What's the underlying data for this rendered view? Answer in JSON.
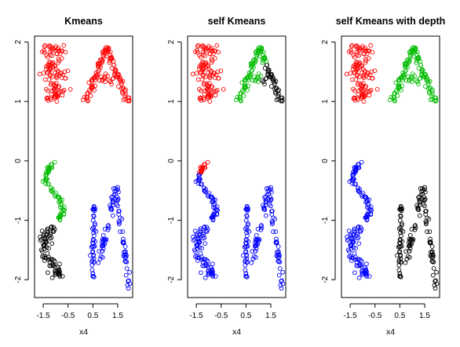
{
  "chart_data": [
    {
      "type": "scatter",
      "title": "Kmeans",
      "xlabel": "x4",
      "ylabel": "",
      "xlim": [
        -1.85,
        2.1
      ],
      "ylim": [
        -2.3,
        2.1
      ],
      "xticks": [
        -1.5,
        -0.5,
        0.5,
        1.5
      ],
      "xtick_labels": [
        "-1.5",
        "-0.5",
        "0.5",
        "1.5"
      ],
      "yticks": [
        -2,
        -1,
        0,
        1,
        2
      ],
      "ytick_labels": [
        "-2",
        "-1",
        "0",
        "1",
        "2"
      ],
      "grid": false,
      "legend": "none",
      "cluster_colors": {
        "upper-left": "#ff0000",
        "upper-right": "#ff0000",
        "middle-left": "#00bb00",
        "lower-left": "#000000",
        "lower-right": "#0000ff"
      }
    },
    {
      "type": "scatter",
      "title": "self Kmeans",
      "xlabel": "x4",
      "ylabel": "",
      "xlim": [
        -1.85,
        2.1
      ],
      "ylim": [
        -2.3,
        2.1
      ],
      "xticks": [
        -1.5,
        -0.5,
        0.5,
        1.5
      ],
      "xtick_labels": [
        "-1.5",
        "-0.5",
        "0.5",
        "1.5"
      ],
      "yticks": [
        -2,
        -1,
        0,
        1,
        2
      ],
      "ytick_labels": [
        "-2",
        "-1",
        "0",
        "1",
        "2"
      ],
      "grid": false,
      "legend": "none",
      "cluster_colors": {
        "upper-left": "#ff0000",
        "upper-right": "#00bb00",
        "upper-right-lower": "#000000",
        "middle-left-top": "#ff0000",
        "lower-all": "#0000ff"
      }
    },
    {
      "type": "scatter",
      "title": "self Kmeans with depth",
      "xlabel": "x4",
      "ylabel": "",
      "xlim": [
        -1.85,
        2.1
      ],
      "ylim": [
        -2.3,
        2.1
      ],
      "xticks": [
        -1.5,
        -0.5,
        0.5,
        1.5
      ],
      "xtick_labels": [
        "-1.5",
        "-0.5",
        "0.5",
        "1.5"
      ],
      "yticks": [
        -2,
        -1,
        0,
        1,
        2
      ],
      "ytick_labels": [
        "-2",
        "-1",
        "0",
        "1",
        "2"
      ],
      "grid": false,
      "legend": "none",
      "cluster_colors": {
        "upper-left": "#ff0000",
        "upper-right": "#00bb00",
        "lower-left": "#0000ff",
        "lower-right": "#000000"
      }
    }
  ]
}
